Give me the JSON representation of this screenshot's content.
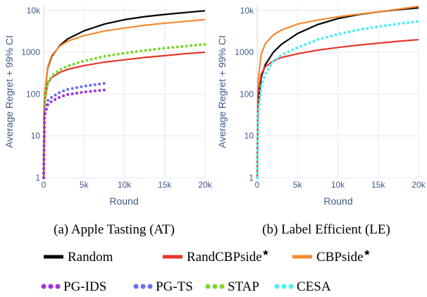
{
  "chart_data": [
    {
      "type": "line",
      "caption": "(a) Apple Tasting (AT)",
      "xlabel": "Round",
      "ylabel": "Average Regret + 99% CI",
      "x_scale": "linear",
      "y_scale": "log",
      "xlim": [
        0,
        20000
      ],
      "ylim": [
        1,
        13000
      ],
      "x_ticks": [
        0,
        5000,
        10000,
        15000,
        20000
      ],
      "x_tick_labels": [
        "0",
        "5k",
        "10k",
        "15k",
        "20k"
      ],
      "y_ticks": [
        1,
        10,
        100,
        1000,
        10000
      ],
      "y_tick_labels": [
        "1",
        "10",
        "100",
        "1000",
        "10k"
      ],
      "grid": true,
      "series": [
        {
          "name": "Random",
          "x": [
            1,
            100,
            500,
            1000,
            2000,
            3000,
            5000,
            7500,
            10000,
            12500,
            15000,
            17500,
            20000
          ],
          "values": [
            1,
            90,
            420,
            800,
            1450,
            2100,
            3250,
            4700,
            6000,
            7100,
            8000,
            8900,
            9800
          ]
        },
        {
          "name": "CBPside★",
          "x": [
            1,
            100,
            500,
            1000,
            2000,
            3000,
            5000,
            7500,
            10000,
            12500,
            15000,
            17500,
            20000
          ],
          "values": [
            1,
            90,
            450,
            850,
            1400,
            1850,
            2500,
            3200,
            3800,
            4400,
            4950,
            5450,
            6000
          ]
        },
        {
          "name": "RandCBPside★",
          "x": [
            1,
            100,
            500,
            1000,
            2000,
            3000,
            5000,
            7500,
            10000,
            12500,
            15000,
            17500,
            20000
          ],
          "values": [
            1,
            60,
            180,
            250,
            330,
            390,
            480,
            580,
            660,
            750,
            830,
            920,
            1000
          ]
        },
        {
          "name": "STAP",
          "x": [
            1,
            100,
            500,
            1000,
            2000,
            3000,
            5000,
            7500,
            10000,
            12500,
            15000,
            17500,
            20000
          ],
          "values": [
            1,
            70,
            190,
            270,
            380,
            470,
            620,
            800,
            950,
            1100,
            1250,
            1400,
            1550
          ]
        },
        {
          "name": "PG-TS",
          "x": [
            1,
            100,
            500,
            1000,
            2000,
            3000,
            5000,
            7500
          ],
          "values": [
            1,
            35,
            70,
            85,
            110,
            130,
            155,
            180
          ]
        },
        {
          "name": "PG-IDS",
          "x": [
            1,
            100,
            500,
            1000,
            2000,
            3000,
            5000,
            7500
          ],
          "values": [
            1,
            30,
            55,
            68,
            85,
            98,
            112,
            125
          ]
        }
      ]
    },
    {
      "type": "line",
      "caption": "(b) Label Efficient (LE)",
      "xlabel": "Round",
      "ylabel": "Average Regret + 99% CI",
      "x_scale": "linear",
      "y_scale": "log",
      "xlim": [
        0,
        20000
      ],
      "ylim": [
        1,
        13000
      ],
      "x_ticks": [
        0,
        5000,
        10000,
        15000,
        20000
      ],
      "x_tick_labels": [
        "0",
        "5k",
        "10k",
        "15k",
        "20k"
      ],
      "y_ticks": [
        1,
        10,
        100,
        1000,
        10000
      ],
      "y_tick_labels": [
        "1",
        "10",
        "100",
        "1000",
        "10k"
      ],
      "grid": true,
      "series": [
        {
          "name": "Random",
          "x": [
            1,
            100,
            500,
            1000,
            2000,
            3000,
            5000,
            7500,
            10000,
            12500,
            15000,
            17500,
            20000
          ],
          "values": [
            1,
            50,
            250,
            500,
            1000,
            1550,
            2800,
            4600,
            6400,
            7900,
            9200,
            10400,
            11500
          ]
        },
        {
          "name": "CBPside★",
          "x": [
            1,
            100,
            500,
            1000,
            2000,
            3000,
            5000,
            7500,
            10000,
            12500,
            15000,
            17500,
            20000
          ],
          "values": [
            1,
            200,
            900,
            1600,
            2600,
            3400,
            4700,
            5900,
            7000,
            8100,
            9200,
            10700,
            12500
          ]
        },
        {
          "name": "RandCBPside★",
          "x": [
            1,
            100,
            500,
            1000,
            2000,
            3000,
            5000,
            7500,
            10000,
            12500,
            15000,
            17500,
            20000
          ],
          "values": [
            1,
            100,
            300,
            450,
            620,
            750,
            920,
            1120,
            1300,
            1480,
            1650,
            1830,
            2000
          ]
        },
        {
          "name": "CESA",
          "x": [
            1,
            100,
            500,
            1000,
            2000,
            3000,
            5000,
            7500,
            10000,
            12500,
            15000,
            17500,
            20000
          ],
          "values": [
            1,
            30,
            150,
            300,
            600,
            850,
            1300,
            2000,
            2700,
            3400,
            4100,
            4800,
            5500
          ]
        }
      ]
    }
  ],
  "legend": {
    "row1": [
      {
        "label": "Random",
        "color": "#000000",
        "style": "solid"
      },
      {
        "label": "RandCBPside",
        "sup": "★",
        "color": "#e8352b",
        "style": "solid"
      },
      {
        "label": "CBPside",
        "sup": "★",
        "color": "#f58a30",
        "style": "solid"
      }
    ],
    "row2": [
      {
        "label": "PG-IDS",
        "color": "#9f31de",
        "style": "dotted"
      },
      {
        "label": "PG-TS",
        "color": "#6a6ff0",
        "style": "dotted"
      },
      {
        "label": "STAP",
        "color": "#7dd82e",
        "style": "dotted"
      },
      {
        "label": "CESA",
        "color": "#4ef0f4",
        "style": "dotted"
      }
    ]
  },
  "colors": {
    "Random": "#000000",
    "RandCBPside★": "#e8352b",
    "CBPside★": "#f58a30",
    "PG-IDS": "#9f31de",
    "PG-TS": "#6a6ff0",
    "STAP": "#7dd82e",
    "CESA": "#4ef0f4",
    "axis_text": "#3d5a8a",
    "grid": "#e4e9f0"
  }
}
